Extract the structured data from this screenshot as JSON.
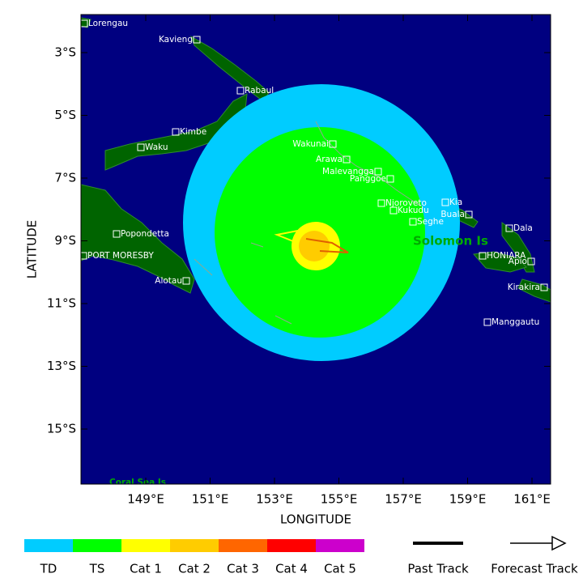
{
  "map": {
    "x_label": "LONGITUDE",
    "y_label": "LATITUDE",
    "lat_ticks": [
      "3°S",
      "5°S",
      "7°S",
      "9°S",
      "11°S",
      "13°S",
      "15°S"
    ],
    "lon_ticks": [
      "149°E",
      "151°E",
      "153°E",
      "155°E",
      "157°E",
      "159°E",
      "161°E"
    ],
    "regions": [
      "Solomon Is",
      "Coral Sea Is"
    ],
    "places": [
      "Lorengau",
      "Kavieng",
      "Rabaul",
      "Kimbe",
      "Waku",
      "Wakunai",
      "Arawa",
      "Malevangga",
      "Panggoe",
      "Njoroveto",
      "Kukudu",
      "Seghe",
      "Kia",
      "Buala",
      "Dala",
      "HONIARA",
      "Apio",
      "Kirakira",
      "Manggautu",
      "Popondetta",
      "PORT MORESBY",
      "Alotau"
    ]
  },
  "legend": {
    "intensity": [
      {
        "label": "TD",
        "color": "#00ccff"
      },
      {
        "label": "TS",
        "color": "#00ff00"
      },
      {
        "label": "Cat 1",
        "color": "#ffff00"
      },
      {
        "label": "Cat 2",
        "color": "#ffcc00"
      },
      {
        "label": "Cat 3",
        "color": "#ff6600"
      },
      {
        "label": "Cat 4",
        "color": "#ff0000"
      },
      {
        "label": "Cat 5",
        "color": "#cc00cc"
      }
    ],
    "tracks": [
      "Past Track",
      "Forecast Track"
    ]
  }
}
